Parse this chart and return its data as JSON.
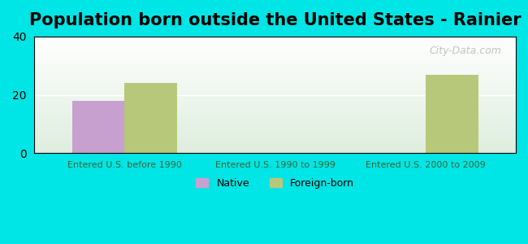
{
  "title": "Population born outside the United States - Rainier",
  "categories": [
    "Entered U.S. before 1990",
    "Entered U.S. 1990 to 1999",
    "Entered U.S. 2000 to 2009"
  ],
  "native_values": [
    18,
    0,
    0
  ],
  "foreign_values": [
    24,
    0,
    27
  ],
  "native_color": "#c8a0d0",
  "foreign_color": "#b8c87a",
  "background_color": "#00e5e5",
  "chart_bg_top": "#ffffff",
  "chart_bg_bottom": "#ddeedd",
  "ylim": [
    0,
    40
  ],
  "yticks": [
    0,
    20,
    40
  ],
  "bar_width": 0.35,
  "title_fontsize": 15,
  "legend_labels": [
    "Native",
    "Foreign-born"
  ],
  "watermark": "City-Data.com"
}
